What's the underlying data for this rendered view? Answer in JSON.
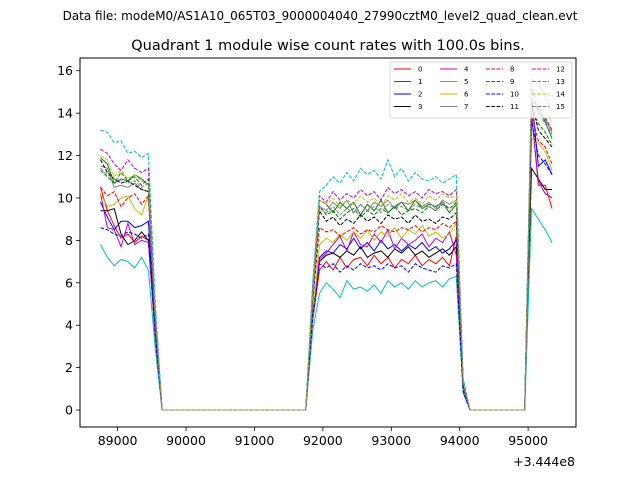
{
  "figure": {
    "suptitle": "Data file: modeM0/AS1A10_065T03_9000004040_27990cztM0_level2_quad_clean.evt",
    "title": "Quadrant 1 module wise count rates with 100.0s bins.",
    "x_offset_label": "+3.444e8"
  },
  "chart_data": {
    "type": "line",
    "title": "Quadrant 1 module wise count rates with 100.0s bins.",
    "xlabel": "",
    "ylabel": "",
    "x_offset": 344400000,
    "xlim": [
      88450,
      95700
    ],
    "ylim": [
      -0.8,
      16.6
    ],
    "x_ticks": [
      89000,
      90000,
      91000,
      92000,
      93000,
      94000,
      95000
    ],
    "y_ticks": [
      0,
      2,
      4,
      6,
      8,
      10,
      12,
      14,
      16
    ],
    "grid": false,
    "legend_location": "upper-right",
    "legend_columns": 4,
    "x": [
      88750,
      88850,
      88950,
      89050,
      89150,
      89250,
      89350,
      89450,
      89550,
      89650,
      89750,
      89850,
      89950,
      90050,
      90150,
      90250,
      90350,
      90450,
      90550,
      90650,
      90750,
      90850,
      90950,
      91050,
      91150,
      91250,
      91350,
      91450,
      91550,
      91650,
      91750,
      91850,
      91950,
      92050,
      92150,
      92250,
      92350,
      92450,
      92550,
      92650,
      92750,
      92850,
      92950,
      93050,
      93150,
      93250,
      93350,
      93450,
      93550,
      93650,
      93750,
      93850,
      93950,
      94050,
      94150,
      94250,
      94350,
      94450,
      94550,
      94650,
      94750,
      94850,
      94950,
      95050,
      95150,
      95250,
      95350
    ],
    "series": [
      {
        "name": "0",
        "color": "#ff0000",
        "dash": "solid",
        "values": [
          10.5,
          9.4,
          8.7,
          8.1,
          8.3,
          7.9,
          8.2,
          8.0,
          3.5,
          0,
          0,
          0,
          0,
          0,
          0,
          0,
          0,
          0,
          0,
          0,
          0,
          0,
          0,
          0,
          0,
          0,
          0,
          0,
          0,
          0,
          0,
          4.2,
          6.6,
          7.0,
          6.6,
          7.2,
          6.7,
          7.1,
          7.2,
          6.8,
          7.3,
          6.9,
          7.2,
          6.7,
          7.1,
          6.9,
          7.3,
          6.8,
          7.1,
          6.9,
          7.2,
          6.8,
          8.2,
          1.0,
          0,
          0,
          0,
          0,
          0,
          0,
          0,
          0,
          0,
          14.0,
          10.6,
          10.6,
          9.5
        ]
      },
      {
        "name": "1",
        "color": "#008000",
        "dash": "solid",
        "values": [
          11.9,
          11.6,
          10.7,
          10.9,
          10.8,
          11.1,
          10.9,
          10.6,
          4.5,
          0,
          0,
          0,
          0,
          0,
          0,
          0,
          0,
          0,
          0,
          0,
          0,
          0,
          0,
          0,
          0,
          0,
          0,
          0,
          0,
          0,
          0,
          5.6,
          9.9,
          9.7,
          9.3,
          9.8,
          9.5,
          9.8,
          9.2,
          9.7,
          9.4,
          9.9,
          9.3,
          9.6,
          9.8,
          9.4,
          9.9,
          9.5,
          9.7,
          9.6,
          9.8,
          9.3,
          9.7,
          1.3,
          0,
          0,
          0,
          0,
          0,
          0,
          0,
          0,
          0,
          14.4,
          14.2,
          13.6,
          12.8
        ]
      },
      {
        "name": "2",
        "color": "#0000ff",
        "dash": "solid",
        "values": [
          9.8,
          9.1,
          8.5,
          8.9,
          8.9,
          8.6,
          8.7,
          8.9,
          3.8,
          0,
          0,
          0,
          0,
          0,
          0,
          0,
          0,
          0,
          0,
          0,
          0,
          0,
          0,
          0,
          0,
          0,
          0,
          0,
          0,
          0,
          0,
          4.5,
          7.2,
          7.5,
          7.4,
          7.8,
          7.6,
          8.1,
          7.6,
          7.9,
          7.5,
          8.0,
          7.6,
          7.8,
          7.5,
          7.8,
          7.6,
          7.9,
          7.5,
          7.7,
          7.4,
          7.6,
          8.0,
          1.1,
          0,
          0,
          0,
          0,
          0,
          0,
          0,
          0,
          0,
          14.8,
          11.5,
          11.8,
          11.1
        ]
      },
      {
        "name": "3",
        "color": "#000000",
        "dash": "solid",
        "values": [
          9.4,
          9.4,
          9.5,
          8.3,
          7.8,
          8.0,
          8.4,
          8.0,
          3.5,
          0,
          0,
          0,
          0,
          0,
          0,
          0,
          0,
          0,
          0,
          0,
          0,
          0,
          0,
          0,
          0,
          0,
          0,
          0,
          0,
          0,
          0,
          4.3,
          7.0,
          7.3,
          7.4,
          7.2,
          7.5,
          7.3,
          7.7,
          7.2,
          7.4,
          7.5,
          7.2,
          7.6,
          7.4,
          7.7,
          7.3,
          7.5,
          7.2,
          7.4,
          7.6,
          7.3,
          7.7,
          1.0,
          0,
          0,
          0,
          0,
          0,
          0,
          0,
          0,
          0,
          11.4,
          10.9,
          10.4,
          10.4
        ]
      },
      {
        "name": "4",
        "color": "#bf00bf",
        "dash": "solid",
        "values": [
          10.2,
          8.6,
          8.5,
          7.7,
          8.8,
          7.8,
          8.0,
          7.9,
          3.5,
          0,
          0,
          0,
          0,
          0,
          0,
          0,
          0,
          0,
          0,
          0,
          0,
          0,
          0,
          0,
          0,
          0,
          0,
          0,
          0,
          0,
          0,
          4.4,
          7.1,
          7.4,
          7.8,
          8.2,
          7.5,
          8.4,
          7.8,
          7.7,
          8.3,
          7.9,
          8.5,
          7.6,
          8.1,
          7.8,
          8.0,
          8.3,
          7.7,
          8.1,
          7.9,
          8.4,
          7.3,
          1.0,
          0,
          0,
          0,
          0,
          0,
          0,
          0,
          0,
          0,
          13.9,
          10.8,
          10.2,
          10.0
        ]
      },
      {
        "name": "5",
        "color": "#00bfbf",
        "dash": "solid",
        "values": [
          7.8,
          7.2,
          6.8,
          7.1,
          7.0,
          6.7,
          7.2,
          6.6,
          2.9,
          0,
          0,
          0,
          0,
          0,
          0,
          0,
          0,
          0,
          0,
          0,
          0,
          0,
          0,
          0,
          0,
          0,
          0,
          0,
          0,
          0,
          0,
          3.7,
          5.5,
          6.0,
          5.7,
          5.3,
          6.1,
          5.7,
          5.8,
          5.6,
          5.9,
          5.5,
          6.1,
          5.8,
          6.0,
          5.7,
          6.1,
          5.8,
          6.0,
          6.1,
          5.8,
          6.2,
          6.3,
          0.8,
          0,
          0,
          0,
          0,
          0,
          0,
          0,
          0,
          0,
          9.5,
          9.0,
          8.5,
          7.9
        ]
      },
      {
        "name": "6",
        "color": "#bfbf00",
        "dash": "solid",
        "values": [
          10.2,
          9.6,
          9.7,
          10.0,
          10.1,
          9.5,
          9.2,
          10.1,
          4.0,
          0,
          0,
          0,
          0,
          0,
          0,
          0,
          0,
          0,
          0,
          0,
          0,
          0,
          0,
          0,
          0,
          0,
          0,
          0,
          0,
          0,
          0,
          4.2,
          7.8,
          8.1,
          7.9,
          8.3,
          8.0,
          8.4,
          8.1,
          8.5,
          8.0,
          8.4,
          8.2,
          8.6,
          8.1,
          8.5,
          8.3,
          8.7,
          8.2,
          8.4,
          8.1,
          8.3,
          8.8,
          1.1,
          0,
          0,
          0,
          0,
          0,
          0,
          0,
          0,
          0,
          12.8,
          12.6,
          12.2,
          11.3
        ]
      },
      {
        "name": "7",
        "color": "#808080",
        "dash": "solid",
        "values": [
          11.5,
          11.4,
          10.5,
          10.6,
          10.5,
          10.7,
          10.4,
          10.3,
          4.4,
          0,
          0,
          0,
          0,
          0,
          0,
          0,
          0,
          0,
          0,
          0,
          0,
          0,
          0,
          0,
          0,
          0,
          0,
          0,
          0,
          0,
          0,
          5.2,
          9.6,
          9.4,
          9.8,
          9.5,
          9.9,
          9.3,
          9.7,
          9.4,
          9.8,
          9.6,
          9.9,
          9.5,
          9.8,
          9.7,
          9.9,
          9.6,
          9.8,
          9.5,
          9.9,
          9.7,
          9.9,
          1.3,
          0,
          0,
          0,
          0,
          0,
          0,
          0,
          0,
          0,
          14.6,
          14.3,
          13.7,
          13.1
        ]
      },
      {
        "name": "8",
        "color": "#ff0000",
        "dash": "dashed",
        "values": [
          10.5,
          10.1,
          10.3,
          9.6,
          10.0,
          10.2,
          9.7,
          10.1,
          4.2,
          0,
          0,
          0,
          0,
          0,
          0,
          0,
          0,
          0,
          0,
          0,
          0,
          0,
          0,
          0,
          0,
          0,
          0,
          0,
          0,
          0,
          0,
          5.0,
          8.6,
          8.4,
          8.5,
          8.2,
          8.4,
          8.6,
          8.3,
          8.5,
          8.4,
          8.7,
          8.5,
          8.4,
          8.6,
          8.5,
          8.7,
          8.4,
          8.6,
          8.5,
          8.8,
          8.6,
          8.9,
          1.2,
          0,
          0,
          0,
          0,
          0,
          0,
          0,
          0,
          0,
          13.9,
          12.7,
          12.4,
          11.6
        ]
      },
      {
        "name": "9",
        "color": "#008000",
        "dash": "dashed",
        "values": [
          11.3,
          11.0,
          10.7,
          11.2,
          10.8,
          11.0,
          10.6,
          10.9,
          4.4,
          0,
          0,
          0,
          0,
          0,
          0,
          0,
          0,
          0,
          0,
          0,
          0,
          0,
          0,
          0,
          0,
          0,
          0,
          0,
          0,
          0,
          0,
          5.3,
          9.6,
          9.2,
          9.4,
          9.0,
          9.3,
          9.5,
          9.1,
          9.4,
          9.2,
          9.5,
          9.3,
          9.6,
          9.2,
          9.4,
          9.5,
          9.3,
          9.6,
          9.4,
          9.7,
          9.5,
          9.8,
          1.3,
          0,
          0,
          0,
          0,
          0,
          0,
          0,
          0,
          0,
          14.2,
          13.5,
          13.1,
          12.5
        ]
      },
      {
        "name": "10",
        "color": "#0000ff",
        "dash": "dashed",
        "values": [
          8.6,
          8.5,
          8.3,
          8.2,
          8.4,
          8.3,
          8.1,
          8.3,
          3.6,
          0,
          0,
          0,
          0,
          0,
          0,
          0,
          0,
          0,
          0,
          0,
          0,
          0,
          0,
          0,
          0,
          0,
          0,
          0,
          0,
          0,
          0,
          4.3,
          6.9,
          6.7,
          6.9,
          6.5,
          6.8,
          6.6,
          6.9,
          6.7,
          6.8,
          6.6,
          6.9,
          6.7,
          6.8,
          6.5,
          6.9,
          6.7,
          6.6,
          6.5,
          6.8,
          6.7,
          6.9,
          0.9,
          0,
          0,
          0,
          0,
          0,
          0,
          0,
          0,
          0,
          13.6,
          12.0,
          11.6,
          11.1
        ]
      },
      {
        "name": "11",
        "color": "#000000",
        "dash": "dashed",
        "values": [
          11.8,
          11.2,
          10.9,
          10.7,
          10.8,
          10.6,
          10.4,
          10.3,
          4.4,
          0,
          0,
          0,
          0,
          0,
          0,
          0,
          0,
          0,
          0,
          0,
          0,
          0,
          0,
          0,
          0,
          0,
          0,
          0,
          0,
          0,
          0,
          5.1,
          9.4,
          8.9,
          9.1,
          8.7,
          9.0,
          8.8,
          9.2,
          8.9,
          9.1,
          8.8,
          9.2,
          9.0,
          9.1,
          8.8,
          9.2,
          8.9,
          9.0,
          8.8,
          9.1,
          9.0,
          9.3,
          1.2,
          0,
          0,
          0,
          0,
          0,
          0,
          0,
          0,
          0,
          14.5,
          13.2,
          12.8,
          12.4
        ]
      },
      {
        "name": "12",
        "color": "#bf00bf",
        "dash": "dashed",
        "values": [
          12.3,
          12.1,
          11.6,
          11.3,
          11.8,
          11.4,
          11.2,
          11.4,
          4.7,
          0,
          0,
          0,
          0,
          0,
          0,
          0,
          0,
          0,
          0,
          0,
          0,
          0,
          0,
          0,
          0,
          0,
          0,
          0,
          0,
          0,
          0,
          5.7,
          10.1,
          9.8,
          10.3,
          9.9,
          10.2,
          10.0,
          10.4,
          10.1,
          10.3,
          9.9,
          10.5,
          10.2,
          10.4,
          10.1,
          10.3,
          10.0,
          10.4,
          10.2,
          10.3,
          10.1,
          10.4,
          1.4,
          0,
          0,
          0,
          0,
          0,
          0,
          0,
          0,
          0,
          15.2,
          14.0,
          13.8,
          13.2
        ]
      },
      {
        "name": "13",
        "color": "#00bfbf",
        "dash": "dashed",
        "values": [
          13.2,
          13.1,
          12.6,
          12.7,
          12.1,
          12.2,
          11.9,
          12.1,
          5.1,
          0,
          0,
          0,
          0,
          0,
          0,
          0,
          0,
          0,
          0,
          0,
          0,
          0,
          0,
          0,
          0,
          0,
          0,
          0,
          0,
          0,
          0,
          6.0,
          10.3,
          10.6,
          11.0,
          10.7,
          11.2,
          10.8,
          11.4,
          11.1,
          11.3,
          10.9,
          11.8,
          11.0,
          11.4,
          10.8,
          11.2,
          10.9,
          10.8,
          11.0,
          10.7,
          10.9,
          11.1,
          1.5,
          0,
          0,
          0,
          0,
          0,
          0,
          0,
          0,
          0,
          15.6,
          15.4,
          14.8,
          14.0
        ]
      },
      {
        "name": "14",
        "color": "#bfbf00",
        "dash": "dashed",
        "values": [
          12.0,
          11.8,
          11.0,
          11.3,
          10.9,
          11.1,
          10.8,
          10.6,
          4.5,
          0,
          0,
          0,
          0,
          0,
          0,
          0,
          0,
          0,
          0,
          0,
          0,
          0,
          0,
          0,
          0,
          0,
          0,
          0,
          0,
          0,
          0,
          5.4,
          9.9,
          9.7,
          10.0,
          9.6,
          9.9,
          9.7,
          10.1,
          9.8,
          10.0,
          9.6,
          10.1,
          9.9,
          10.2,
          9.8,
          10.0,
          9.7,
          10.1,
          9.9,
          10.2,
          10.0,
          10.1,
          1.3,
          0,
          0,
          0,
          0,
          0,
          0,
          0,
          0,
          0,
          14.9,
          14.6,
          14.1,
          13.6
        ]
      },
      {
        "name": "15",
        "color": "#808080",
        "dash": "dashed",
        "values": [
          11.4,
          11.1,
          10.9,
          10.8,
          10.7,
          10.8,
          10.5,
          10.7,
          4.4,
          0,
          0,
          0,
          0,
          0,
          0,
          0,
          0,
          0,
          0,
          0,
          0,
          0,
          0,
          0,
          0,
          0,
          0,
          0,
          0,
          0,
          0,
          5.2,
          9.5,
          9.3,
          9.6,
          9.2,
          9.5,
          9.3,
          9.7,
          9.4,
          9.6,
          9.3,
          9.7,
          9.5,
          9.6,
          9.4,
          9.7,
          9.5,
          9.6,
          9.4,
          9.8,
          9.5,
          9.7,
          1.3,
          0,
          0,
          0,
          0,
          0,
          0,
          0,
          0,
          0,
          14.7,
          14.0,
          13.5,
          13.0
        ]
      }
    ]
  }
}
